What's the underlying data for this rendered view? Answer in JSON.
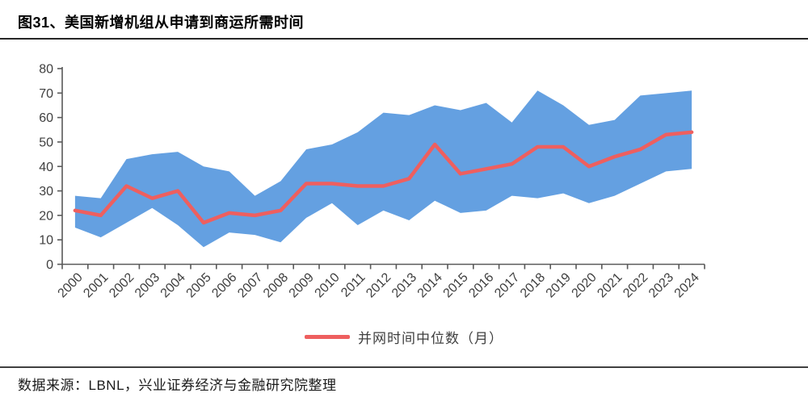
{
  "header": {
    "title": "图31、美国新增机组从申请到商运所需时间"
  },
  "chart_data": {
    "type": "area",
    "title": "图31、美国新增机组从申请到商运所需时间",
    "categories": [
      "2000",
      "2001",
      "2002",
      "2003",
      "2004",
      "2005",
      "2006",
      "2007",
      "2008",
      "2009",
      "2010",
      "2011",
      "2012",
      "2013",
      "2014",
      "2015",
      "2016",
      "2017",
      "2018",
      "2019",
      "2020",
      "2021",
      "2022",
      "2023",
      "2024"
    ],
    "series": [
      {
        "name": "并网时间中位数（月）",
        "type": "line",
        "color": "#EE5F5F",
        "values": [
          22,
          20,
          32,
          27,
          30,
          17,
          21,
          20,
          22,
          33,
          33,
          32,
          32,
          35,
          49,
          37,
          39,
          41,
          48,
          48,
          40,
          44,
          47,
          53,
          54
        ]
      }
    ],
    "band": {
      "color": "#64A0E1",
      "upper": [
        28,
        27,
        43,
        45,
        46,
        40,
        38,
        28,
        34,
        47,
        49,
        54,
        62,
        61,
        65,
        63,
        66,
        58,
        71,
        65,
        57,
        59,
        69,
        70,
        71
      ],
      "lower": [
        15,
        11,
        17,
        23,
        16,
        7,
        13,
        12,
        9,
        19,
        25,
        16,
        22,
        18,
        26,
        21,
        22,
        28,
        27,
        29,
        25,
        28,
        33,
        38,
        39
      ]
    },
    "xlabel": "",
    "ylabel": "",
    "ylim": [
      0,
      80
    ],
    "yticks": [
      0,
      10,
      20,
      30,
      40,
      50,
      60,
      70,
      80
    ],
    "grid": false,
    "legend_position": "bottom",
    "axis_color": "#595959",
    "tick_label_color": "#3f3f3f"
  },
  "legend": {
    "label": "并网时间中位数（月）",
    "line_color": "#EE5F5F"
  },
  "footer": {
    "source": "数据来源：LBNL，兴业证券经济与金融研究院整理"
  }
}
